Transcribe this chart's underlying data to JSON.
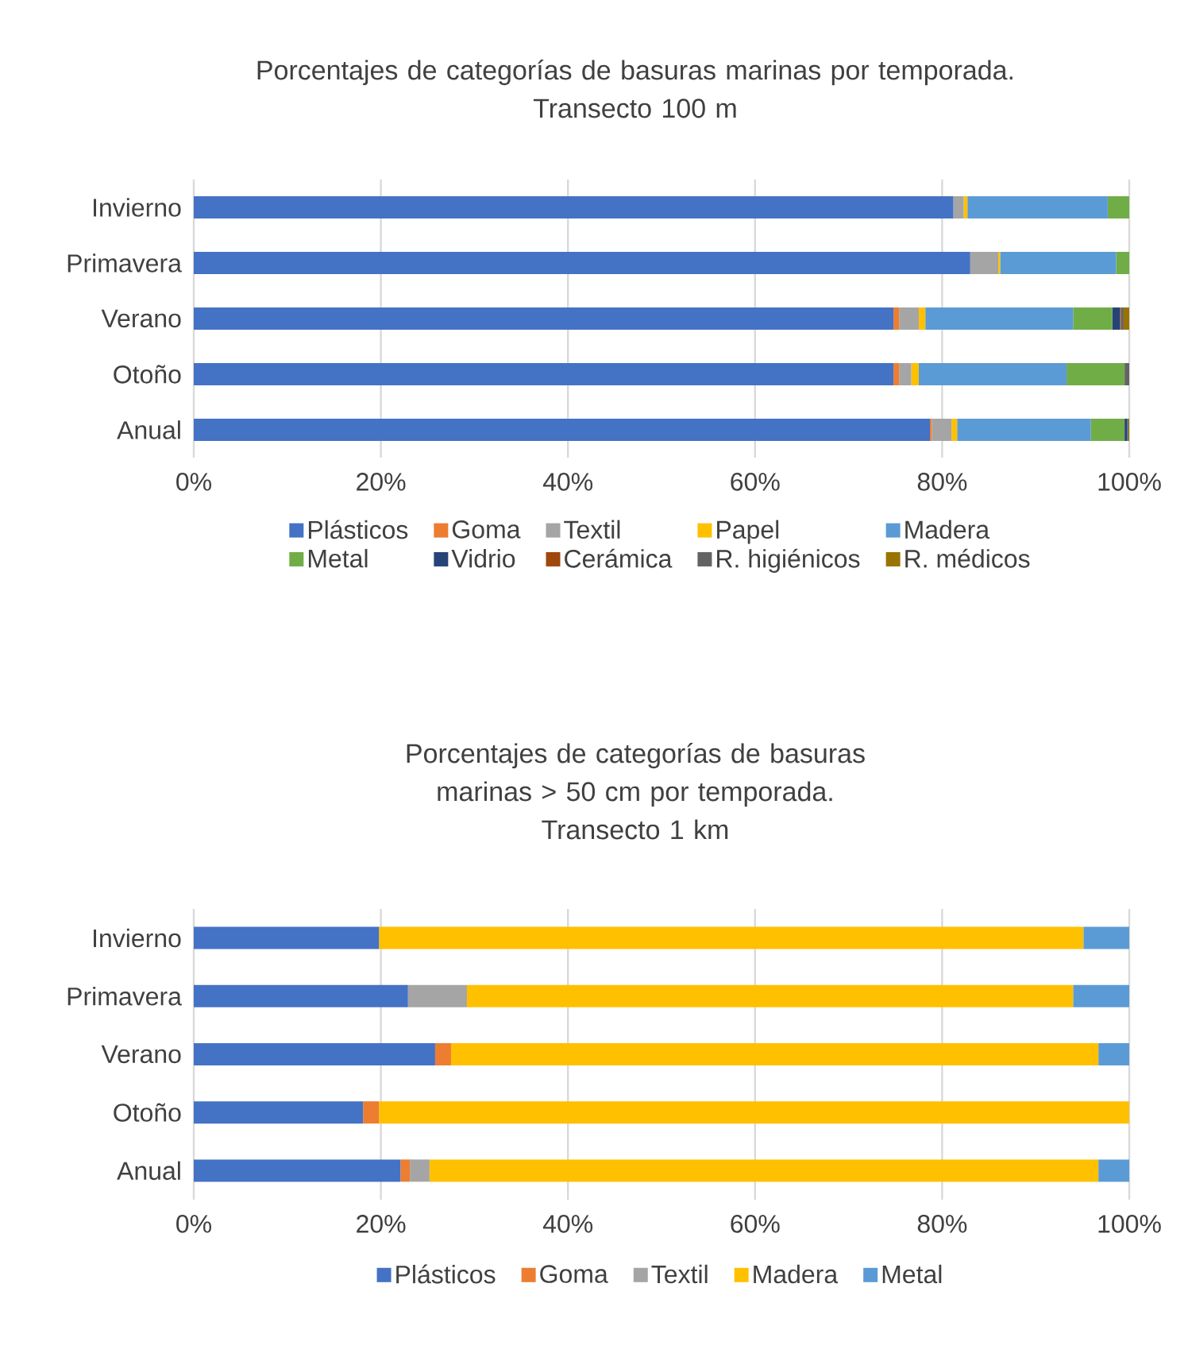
{
  "chart_data": [
    {
      "type": "bar",
      "orientation": "horizontal",
      "stacked": true,
      "title": "Porcentajes de categorías de basuras marinas por temporada.",
      "subtitle": "Transecto 100 m",
      "categories": [
        "Invierno",
        "Primavera",
        "Verano",
        "Otoño",
        "Anual"
      ],
      "series": [
        {
          "name": "Plásticos",
          "color": "#4472c4",
          "values": [
            81.2,
            83.0,
            74.8,
            74.8,
            78.7
          ]
        },
        {
          "name": "Goma",
          "color": "#ed7d31",
          "values": [
            null,
            null,
            0.6,
            0.6,
            0.2
          ]
        },
        {
          "name": "Textil",
          "color": "#a5a5a5",
          "values": [
            1.1,
            3.0,
            2.1,
            1.3,
            2.1
          ]
        },
        {
          "name": "Papel",
          "color": "#ffc000",
          "values": [
            0.4,
            0.2,
            0.7,
            0.8,
            0.6
          ]
        },
        {
          "name": "Madera",
          "color": "#5b9bd5",
          "values": [
            15.0,
            12.4,
            15.8,
            15.8,
            14.3
          ]
        },
        {
          "name": "Metal",
          "color": "#70ad47",
          "values": [
            2.3,
            1.4,
            4.2,
            6.2,
            3.6
          ]
        },
        {
          "name": "Vidrio",
          "color": "#264478",
          "values": [
            null,
            null,
            0.8,
            null,
            0.3
          ]
        },
        {
          "name": "Cerámica",
          "color": "#9e480e",
          "values": [
            null,
            null,
            0.1,
            null,
            null
          ]
        },
        {
          "name": "R. higiénicos",
          "color": "#636363",
          "values": [
            null,
            null,
            0.3,
            0.5,
            0.1
          ]
        },
        {
          "name": "R. médicos",
          "color": "#997300",
          "values": [
            null,
            null,
            0.6,
            null,
            0.1
          ]
        }
      ],
      "xlim": [
        0,
        100
      ],
      "xticks": [
        {
          "value": 0,
          "label": "0%"
        },
        {
          "value": 20,
          "label": "20%"
        },
        {
          "value": 40,
          "label": "40%"
        },
        {
          "value": 60,
          "label": "60%"
        },
        {
          "value": 80,
          "label": "80%"
        },
        {
          "value": 100,
          "label": "100%"
        }
      ],
      "grid": "x",
      "legend": "bottom"
    },
    {
      "type": "bar",
      "orientation": "horizontal",
      "stacked": true,
      "title": "Porcentajes de categorías de basuras marinas > 50 cm por temporada.",
      "subtitle": "Transecto 1 km",
      "categories": [
        "Invierno",
        "Primavera",
        "Verano",
        "Otoño",
        "Anual"
      ],
      "series": [
        {
          "name": "Plásticos",
          "color": "#4472c4",
          "values": [
            19.8,
            22.9,
            25.8,
            18.1,
            22.1
          ]
        },
        {
          "name": "Goma",
          "color": "#ed7d31",
          "values": [
            null,
            null,
            1.7,
            1.7,
            1.0
          ]
        },
        {
          "name": "Textil",
          "color": "#a5a5a5",
          "values": [
            null,
            6.3,
            null,
            null,
            2.1
          ]
        },
        {
          "name": "Madera",
          "color": "#ffc000",
          "values": [
            75.3,
            64.8,
            69.2,
            80.2,
            71.5
          ]
        },
        {
          "name": "Metal",
          "color": "#5b9bd5",
          "values": [
            4.9,
            6.0,
            3.3,
            null,
            3.3
          ]
        }
      ],
      "xlim": [
        0,
        100
      ],
      "xticks": [
        {
          "value": 0,
          "label": "0%"
        },
        {
          "value": 20,
          "label": "20%"
        },
        {
          "value": 40,
          "label": "40%"
        },
        {
          "value": 60,
          "label": "60%"
        },
        {
          "value": 80,
          "label": "80%"
        },
        {
          "value": 100,
          "label": "100%"
        }
      ],
      "grid": "x",
      "legend": "bottom"
    }
  ]
}
